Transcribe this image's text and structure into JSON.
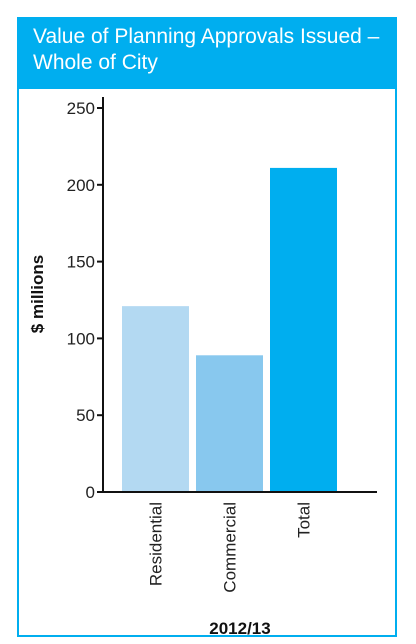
{
  "chart_data": {
    "type": "bar",
    "title": "Value of Planning Approvals Issued – Whole of City",
    "ylabel": "$ millions",
    "xlabel": "2012/13",
    "categories": [
      "Residential",
      "Commercial",
      "Total"
    ],
    "values": [
      121,
      89,
      211
    ],
    "colors": [
      "#b3d9f2",
      "#88c8ee",
      "#00aeef"
    ],
    "ylim": [
      0,
      250
    ],
    "yticks": [
      "0",
      "50",
      "100",
      "150",
      "200",
      "250"
    ],
    "grid": false,
    "legend": "none"
  }
}
